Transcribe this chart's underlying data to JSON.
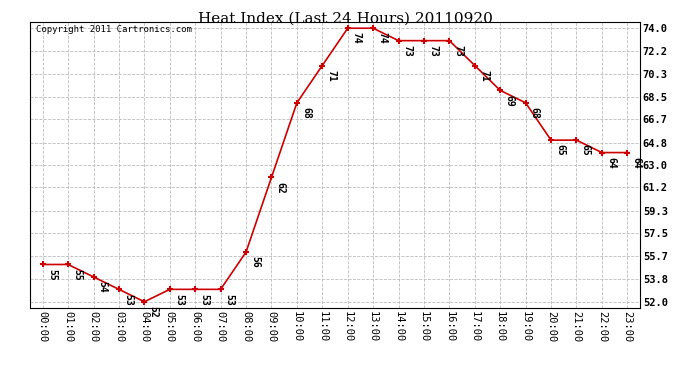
{
  "title": "Heat Index (Last 24 Hours) 20110920",
  "copyright_text": "Copyright 2011 Cartronics.com",
  "hours": [
    0,
    1,
    2,
    3,
    4,
    5,
    6,
    7,
    8,
    9,
    10,
    11,
    12,
    13,
    14,
    15,
    16,
    17,
    18,
    19,
    20,
    21,
    22,
    23
  ],
  "values": [
    55,
    55,
    54,
    53,
    52,
    53,
    53,
    53,
    56,
    62,
    68,
    71,
    74,
    74,
    73,
    73,
    73,
    71,
    69,
    68,
    65,
    65,
    64,
    64
  ],
  "x_labels": [
    "00:00",
    "01:00",
    "02:00",
    "03:00",
    "04:00",
    "05:00",
    "06:00",
    "07:00",
    "08:00",
    "09:00",
    "10:00",
    "11:00",
    "12:00",
    "13:00",
    "14:00",
    "15:00",
    "16:00",
    "17:00",
    "18:00",
    "19:00",
    "20:00",
    "21:00",
    "22:00",
    "23:00"
  ],
  "y_ticks": [
    52.0,
    53.8,
    55.7,
    57.5,
    59.3,
    61.2,
    63.0,
    64.8,
    66.7,
    68.5,
    70.3,
    72.2,
    74.0
  ],
  "ylim": [
    51.5,
    74.5
  ],
  "line_color": "#cc0000",
  "marker_color": "#cc0000",
  "bg_color": "#ffffff",
  "grid_color": "#bbbbbb",
  "title_fontsize": 11,
  "annotation_fontsize": 7,
  "tick_fontsize": 7.5,
  "copyright_fontsize": 6.5
}
